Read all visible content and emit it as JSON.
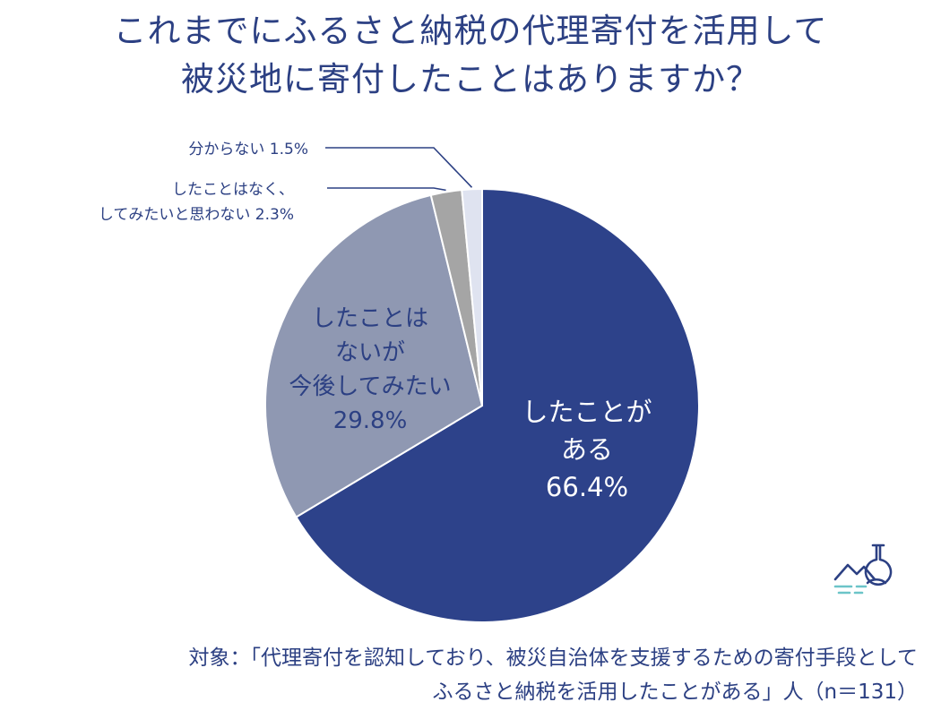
{
  "title": {
    "line1": "これまでにふるさと納税の代理寄付を活用して",
    "line2": "被災地に寄付したことはありますか？"
  },
  "chart_data": {
    "type": "pie",
    "categories": [
      "したことがある",
      "したことはないが今後してみたい",
      "したことはなく、してみたいと思わない",
      "分からない"
    ],
    "values": [
      66.4,
      29.8,
      2.3,
      1.5
    ],
    "colors": [
      "#2d428a",
      "#8f98b2",
      "#a5a5a5",
      "#dfe3f0"
    ],
    "labels": [
      {
        "lines": [
          "したことが",
          "ある",
          "66.4%"
        ]
      },
      {
        "lines": [
          "したことは",
          "ないが",
          "今後してみたい",
          "29.8%"
        ]
      },
      {
        "lines": [
          "したことはなく、",
          "してみたいと思わない 2.3%"
        ]
      },
      {
        "lines": [
          "分からない 1.5%"
        ]
      }
    ]
  },
  "footnote": {
    "line1": "対象：「代理寄付を認知しており、被災自治体を支援するための寄付手段として",
    "line2": "ふるさと納税を活用したことがある」人（n＝131）"
  },
  "logo": {
    "icon": "flask-mountain-icon"
  }
}
